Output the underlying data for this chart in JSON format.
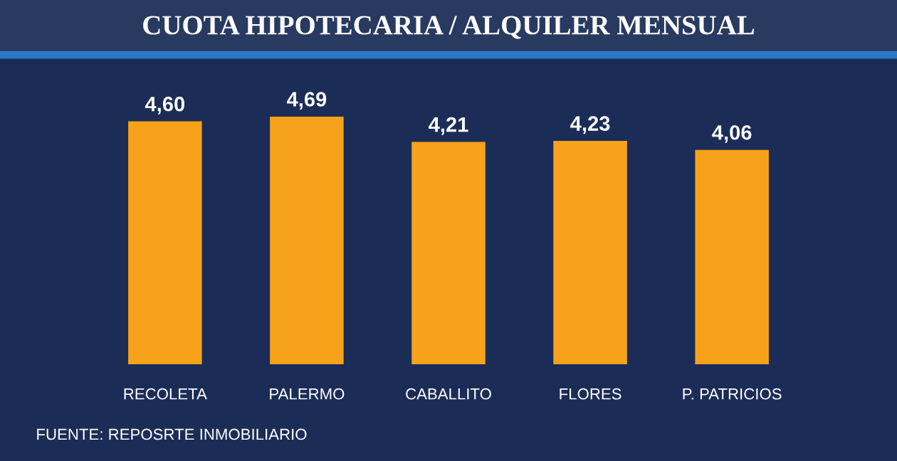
{
  "chart_data": {
    "type": "bar",
    "title": "CUOTA HIPOTECARIA / ALQUILER MENSUAL",
    "categories": [
      "RECOLETA",
      "PALERMO",
      "CABALLITO",
      "FLORES",
      "P. PATRICIOS"
    ],
    "values": [
      4.6,
      4.69,
      4.21,
      4.23,
      4.06
    ],
    "value_labels": [
      "4,60",
      "4,69",
      "4,21",
      "4,23",
      "4,06"
    ],
    "color": "#f7a21b",
    "annotations": [
      "FUENTE: REPOSRTE INMOBILIARIO"
    ]
  }
}
